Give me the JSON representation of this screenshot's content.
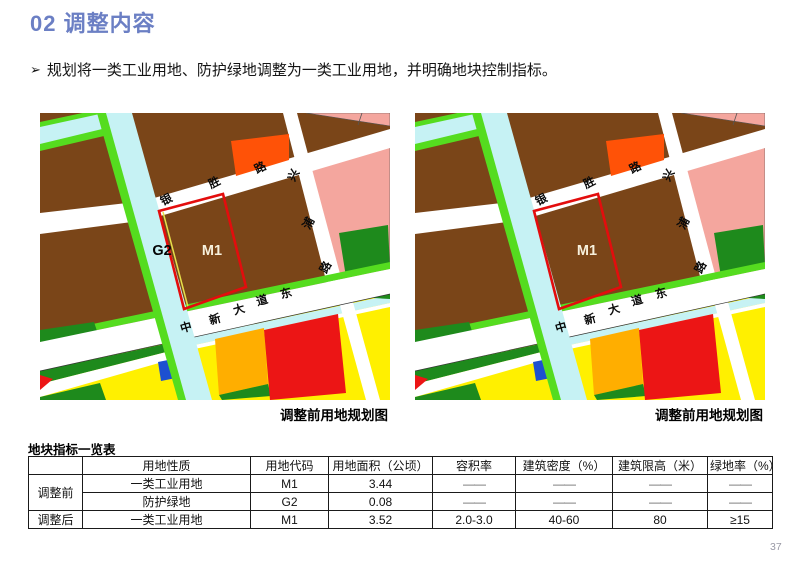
{
  "slide": {
    "title": "02 调整内容",
    "bullet_marker": "➢",
    "bullet_text": "规划将一类工业用地、防护绿地调整为一类工业用地，并明确地块控制指标。",
    "page_number": "37"
  },
  "maps": {
    "left": {
      "caption": "调整前用地规划图",
      "parcel_label": "M1",
      "green_strip_label": "G2",
      "has_green_strip": true
    },
    "right": {
      "caption": "调整前用地规划图",
      "parcel_label": "M1",
      "has_green_strip": false
    },
    "road_labels": {
      "yinsheng": [
        "银",
        "胜",
        "路"
      ],
      "xingpu": [
        "兴",
        "浦",
        "路"
      ],
      "zhongxin": [
        "中",
        "新",
        "大",
        "道",
        "东"
      ]
    },
    "colors": {
      "parcel_brown": "#7A4518",
      "water_cyan": "#C6F2F4",
      "green_bright": "#55DC1F",
      "green_dark": "#1E8A1C",
      "pink": "#F4A69E",
      "orange_red": "#FF5207",
      "red": "#EC1515",
      "amber": "#FFAE00",
      "yellow": "#FFF000",
      "blue": "#1D50D0",
      "outline_red": "#E30D0D",
      "g2_strip_yellow": "#E6E04A",
      "m1_label_color": "#F7F0DC",
      "g2_label_color": "#050505"
    }
  },
  "table": {
    "title": "地块指标一览表",
    "headers": [
      "",
      "用地性质",
      "用地代码",
      "用地面积（公顷）",
      "容积率",
      "建筑密度（%）",
      "建筑限高（米）",
      "绿地率（%）"
    ],
    "rows": [
      {
        "group": "调整前",
        "group_rowspan": 2,
        "cells": [
          "一类工业用地",
          "M1",
          "3.44",
          "——",
          "——",
          "——",
          "——"
        ]
      },
      {
        "group": null,
        "group_rowspan": 0,
        "cells": [
          "防护绿地",
          "G2",
          "0.08",
          "——",
          "——",
          "——",
          "——"
        ]
      },
      {
        "group": "调整后",
        "group_rowspan": 1,
        "cells": [
          "一类工业用地",
          "M1",
          "3.52",
          "2.0-3.0",
          "40-60",
          "80",
          "≥15"
        ]
      }
    ]
  },
  "theme": {
    "title_color": "#6B7FC4"
  }
}
